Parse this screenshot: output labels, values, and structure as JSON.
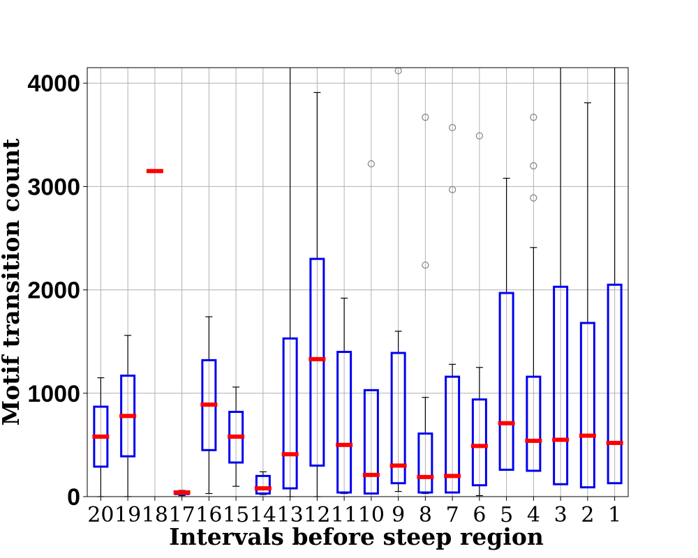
{
  "chart_data": {
    "type": "boxplot",
    "title": "",
    "xlabel": "Intervals before steep region",
    "ylabel": "Motif transition count",
    "ylim": [
      0,
      4150
    ],
    "yticks": [
      0,
      1000,
      2000,
      3000,
      4000
    ],
    "grid": true,
    "colors": {
      "box": "#0000ee",
      "median": "#ff0000",
      "whisker": "#000000",
      "flier": "#808080",
      "grid": "#b0b0b0"
    },
    "categories": [
      "20",
      "19",
      "18",
      "17",
      "16",
      "15",
      "14",
      "13",
      "12",
      "11",
      "10",
      "9",
      "8",
      "7",
      "6",
      "5",
      "4",
      "3",
      "2",
      "1"
    ],
    "boxes": [
      {
        "label": "20",
        "whislo": 0,
        "q1": 290,
        "med": 580,
        "q3": 870,
        "whishi": 1150,
        "fliers": []
      },
      {
        "label": "19",
        "whislo": 0,
        "q1": 390,
        "med": 780,
        "q3": 1170,
        "whishi": 1560,
        "fliers": []
      },
      {
        "label": "18",
        "whislo": 3150,
        "q1": 3150,
        "med": 3150,
        "q3": 3150,
        "whishi": 3150,
        "fliers": []
      },
      {
        "label": "17",
        "whislo": 10,
        "q1": 25,
        "med": 40,
        "q3": 50,
        "whishi": 60,
        "fliers": []
      },
      {
        "label": "16",
        "whislo": 30,
        "q1": 450,
        "med": 890,
        "q3": 1320,
        "whishi": 1740,
        "fliers": []
      },
      {
        "label": "15",
        "whislo": 100,
        "q1": 330,
        "med": 580,
        "q3": 820,
        "whishi": 1060,
        "fliers": []
      },
      {
        "label": "14",
        "whislo": 20,
        "q1": 30,
        "med": 80,
        "q3": 200,
        "whishi": 240,
        "fliers": []
      },
      {
        "label": "13",
        "whislo": 0,
        "q1": 80,
        "med": 410,
        "q3": 1530,
        "whishi": 4150,
        "fliers": []
      },
      {
        "label": "12",
        "whislo": 0,
        "q1": 300,
        "med": 1330,
        "q3": 2300,
        "whishi": 3910,
        "fliers": []
      },
      {
        "label": "11",
        "whislo": 30,
        "q1": 40,
        "med": 500,
        "q3": 1400,
        "whishi": 1920,
        "fliers": []
      },
      {
        "label": "10",
        "whislo": 30,
        "q1": 30,
        "med": 210,
        "q3": 1030,
        "whishi": 1030,
        "fliers": [
          3220
        ]
      },
      {
        "label": "9",
        "whislo": 50,
        "q1": 130,
        "med": 300,
        "q3": 1390,
        "whishi": 1600,
        "fliers": [
          4120
        ]
      },
      {
        "label": "8",
        "whislo": 30,
        "q1": 40,
        "med": 190,
        "q3": 610,
        "whishi": 960,
        "fliers": [
          2240,
          3670
        ]
      },
      {
        "label": "7",
        "whislo": 40,
        "q1": 40,
        "med": 200,
        "q3": 1160,
        "whishi": 1280,
        "fliers": [
          2970,
          3570
        ]
      },
      {
        "label": "6",
        "whislo": 10,
        "q1": 110,
        "med": 490,
        "q3": 940,
        "whishi": 1250,
        "fliers": [
          3490
        ]
      },
      {
        "label": "5",
        "whislo": 260,
        "q1": 260,
        "med": 710,
        "q3": 1970,
        "whishi": 3080,
        "fliers": []
      },
      {
        "label": "4",
        "whislo": 250,
        "q1": 250,
        "med": 540,
        "q3": 1160,
        "whishi": 2410,
        "fliers": [
          2890,
          3200,
          3670
        ]
      },
      {
        "label": "3",
        "whislo": 120,
        "q1": 120,
        "med": 550,
        "q3": 2030,
        "whishi": 4150,
        "fliers": []
      },
      {
        "label": "2",
        "whislo": 90,
        "q1": 90,
        "med": 590,
        "q3": 1680,
        "whishi": 3810,
        "fliers": []
      },
      {
        "label": "1",
        "whislo": 130,
        "q1": 130,
        "med": 520,
        "q3": 2050,
        "whishi": 4150,
        "fliers": []
      }
    ]
  }
}
